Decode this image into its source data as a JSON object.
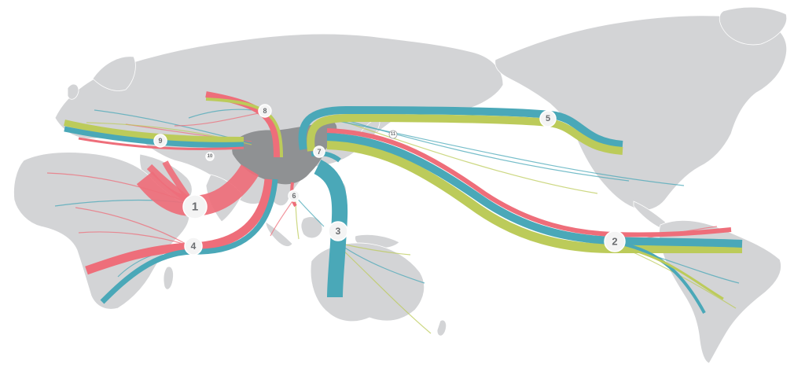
{
  "colors": {
    "red": "#ee6e7a",
    "teal": "#4aa8b8",
    "olive": "#bccb5a",
    "land": "#d3d4d6",
    "origin": "#8f9193"
  },
  "markers": [
    {
      "id": "m1",
      "label": "1"
    },
    {
      "id": "m2",
      "label": "2"
    },
    {
      "id": "m3",
      "label": "3"
    },
    {
      "id": "m4",
      "label": "4"
    },
    {
      "id": "m5",
      "label": "5"
    },
    {
      "id": "m6",
      "label": "6"
    },
    {
      "id": "m7",
      "label": "7"
    },
    {
      "id": "m8",
      "label": "8"
    },
    {
      "id": "m9",
      "label": "9"
    },
    {
      "id": "m10",
      "label": "10"
    },
    {
      "id": "m11",
      "label": "11"
    }
  ]
}
